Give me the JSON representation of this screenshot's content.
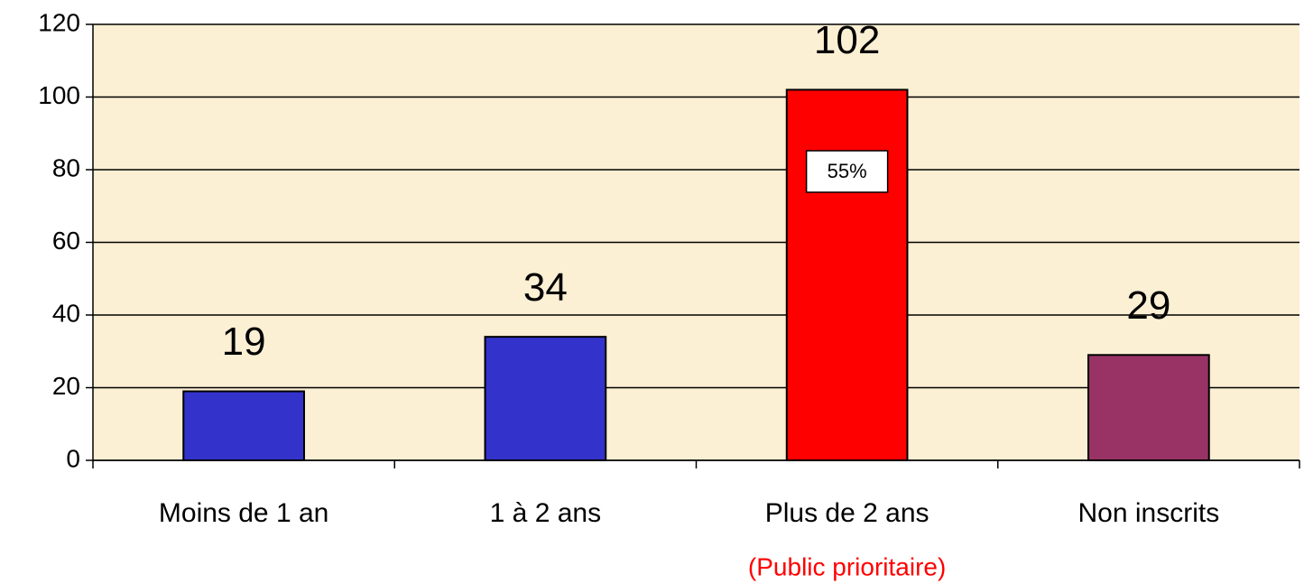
{
  "chart_data": {
    "type": "bar",
    "categories": [
      "Moins de 1 an",
      "1 à 2 ans",
      "Plus de 2 ans",
      "Non inscrits"
    ],
    "values": [
      19,
      34,
      102,
      29
    ],
    "colors": [
      "#3333cc",
      "#3333cc",
      "#ff0000",
      "#993366"
    ],
    "ylim": [
      0,
      120
    ],
    "yticks": [
      0,
      20,
      40,
      60,
      80,
      100,
      120
    ],
    "grid": true,
    "annotations": [
      "55%",
      "(Public prioritaire)"
    ]
  }
}
